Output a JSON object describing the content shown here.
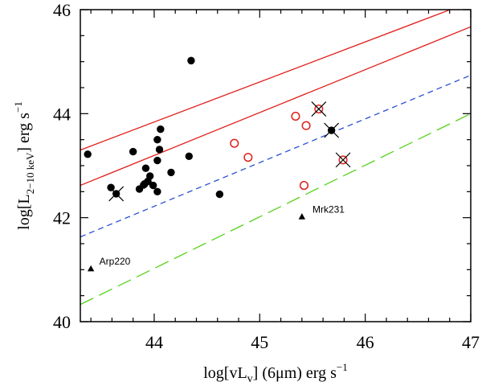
{
  "chart_data": {
    "type": "scatter",
    "xlabel": "log[vLv] (6μm) erg s⁻¹",
    "ylabel": "log[L2-10 keV] erg s⁻¹",
    "xlim": [
      43.3,
      47
    ],
    "ylim": [
      40,
      46
    ],
    "xticks": [
      44,
      45,
      46,
      47
    ],
    "yticks": [
      40,
      42,
      44,
      46
    ],
    "x_tick_labels": [
      "44",
      "45",
      "46",
      "47"
    ],
    "y_tick_labels": [
      "40",
      "42",
      "44",
      "46"
    ],
    "colors": {
      "red": "#e0201b",
      "blue": "#2b4fd6",
      "green": "#55d11a",
      "black": "#000000"
    },
    "lines": [
      {
        "name": "upper-red-line",
        "color": "red",
        "dash": "solid",
        "x": [
          43.3,
          47
        ],
        "y": [
          43.3,
          46.15
        ]
      },
      {
        "name": "lower-red-line",
        "color": "red",
        "dash": "solid",
        "x": [
          43.3,
          47
        ],
        "y": [
          42.62,
          45.67
        ]
      },
      {
        "name": "blue-short-dashed-line",
        "color": "blue",
        "dash": "short",
        "x": [
          43.3,
          47
        ],
        "y": [
          41.63,
          44.74
        ]
      },
      {
        "name": "green-long-dashed-line",
        "color": "green",
        "dash": "long",
        "x": [
          43.3,
          47
        ],
        "y": [
          40.33,
          44.0
        ]
      }
    ],
    "series": [
      {
        "name": "filled black circles",
        "marker": "filled-circle",
        "color": "black",
        "x": [
          43.37,
          43.8,
          43.59,
          43.64,
          43.86,
          43.9,
          43.92,
          43.94,
          43.96,
          43.91,
          43.99,
          44.03,
          44.03,
          44.06,
          44.03,
          44.05,
          44.16,
          44.33,
          44.35,
          44.62,
          45.68
        ],
        "y": [
          43.22,
          43.27,
          42.58,
          42.46,
          42.55,
          42.63,
          42.95,
          42.7,
          42.8,
          42.65,
          42.62,
          43.5,
          43.1,
          43.7,
          42.5,
          43.31,
          42.87,
          43.18,
          45.02,
          42.45,
          43.68
        ]
      },
      {
        "name": "open red circles",
        "marker": "open-circle",
        "color": "red",
        "x": [
          44.76,
          44.89,
          45.34,
          45.44,
          45.42,
          45.56,
          45.79
        ],
        "y": [
          43.43,
          43.16,
          43.95,
          43.77,
          42.62,
          44.09,
          43.11
        ]
      },
      {
        "name": "crossed points",
        "marker": "x-cross",
        "color": "black",
        "x": [
          43.64,
          45.56,
          45.68,
          45.79
        ],
        "y": [
          42.46,
          44.09,
          43.68,
          43.11
        ]
      },
      {
        "name": "filled triangles",
        "marker": "filled-triangle",
        "color": "black",
        "x": [
          43.4,
          45.4
        ],
        "y": [
          41.02,
          42.02
        ]
      }
    ],
    "annotations": [
      {
        "text": "Arp220",
        "x": 43.48,
        "y": 41.02
      },
      {
        "text": "Mrk231",
        "x": 45.5,
        "y": 42.02
      }
    ]
  }
}
